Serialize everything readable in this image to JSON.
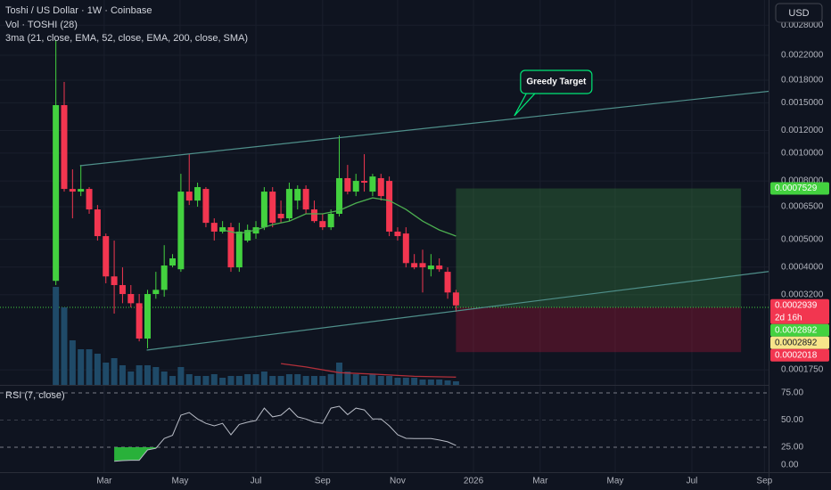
{
  "chart_data": [
    {
      "type": "candlestick",
      "title": "Toshi / US Dollar · 1W · Coinbase",
      "subtitles": [
        "Vol · TOSHI (28)",
        "3ma (21, close, EMA, 52, close, EMA, 200, close, SMA)"
      ],
      "currency": "USD",
      "log_scale": true,
      "grid": true,
      "up_color": "#43d13f",
      "down_color": "#f23650",
      "x": [
        0,
        1,
        2,
        3,
        4,
        5,
        6,
        7,
        8,
        9,
        10,
        11,
        12,
        13,
        14,
        15,
        16,
        17,
        18,
        19,
        20,
        21,
        22,
        23,
        24,
        25,
        26,
        27,
        28,
        29,
        30,
        31,
        32,
        33,
        34,
        35,
        36,
        37,
        38,
        39,
        40,
        41,
        42,
        43,
        44,
        45,
        46,
        47,
        48
      ],
      "ohlc": [
        [
          0.000358,
          0.002486,
          0.000346,
          0.001472
        ],
        [
          0.001472,
          0.001774,
          0.000734,
          0.00075
        ],
        [
          0.00075,
          0.000878,
          0.000592,
          0.000734
        ],
        [
          0.000734,
          0.00091,
          0.000708,
          0.00075
        ],
        [
          0.00075,
          0.000761,
          0.000614,
          0.000636
        ],
        [
          0.000636,
          0.000659,
          0.000495,
          0.000513
        ],
        [
          0.000513,
          0.000524,
          0.000351,
          0.000371
        ],
        [
          0.000371,
          0.000495,
          0.000275,
          0.000346
        ],
        [
          0.000346,
          0.000399,
          0.000299,
          0.000322
        ],
        [
          0.000322,
          0.000346,
          0.000289,
          0.000299
        ],
        [
          0.000299,
          0.000322,
          0.00022,
          0.000225
        ],
        [
          0.000225,
          0.000333,
          0.000208,
          0.000322
        ],
        [
          0.000322,
          0.000385,
          0.00031,
          0.000333
        ],
        [
          0.000333,
          0.000477,
          0.000315,
          0.000405
        ],
        [
          0.000405,
          0.000444,
          0.000399,
          0.000429
        ],
        [
          0.000393,
          0.000847,
          0.000385,
          0.000734
        ],
        [
          0.000734,
          0.000992,
          0.000659,
          0.000683
        ],
        [
          0.000683,
          0.000789,
          0.00065,
          0.000761
        ],
        [
          0.00075,
          0.000761,
          0.000551,
          0.000571
        ],
        [
          0.000571,
          0.000592,
          0.000495,
          0.000532
        ],
        [
          0.000532,
          0.000579,
          0.000524,
          0.000551
        ],
        [
          0.000551,
          0.000571,
          0.000385,
          0.000399
        ],
        [
          0.000399,
          0.000571,
          0.000385,
          0.000532
        ],
        [
          0.000495,
          0.000563,
          0.000488,
          0.000539
        ],
        [
          0.000524,
          0.000579,
          0.000502,
          0.000551
        ],
        [
          0.000551,
          0.000761,
          0.000539,
          0.000734
        ],
        [
          0.000734,
          0.000761,
          0.000551,
          0.000571
        ],
        [
          0.000614,
          0.000683,
          0.000571,
          0.000592
        ],
        [
          0.000592,
          0.000789,
          0.000579,
          0.00075
        ],
        [
          0.000683,
          0.000772,
          0.000636,
          0.00075
        ],
        [
          0.00075,
          0.000772,
          0.000614,
          0.000636
        ],
        [
          0.000636,
          0.000683,
          0.000571,
          0.000579
        ],
        [
          0.000579,
          0.000614,
          0.000539,
          0.000551
        ],
        [
          0.000551,
          0.000636,
          0.000539,
          0.000614
        ],
        [
          0.000614,
          0.001153,
          0.000601,
          0.000818
        ],
        [
          0.000818,
          0.00091,
          0.000718,
          0.000734
        ],
        [
          0.000734,
          0.000847,
          0.000708,
          0.0008
        ],
        [
          0.0008,
          0.000992,
          0.000734,
          0.000789
        ],
        [
          0.000734,
          0.000847,
          0.000708,
          0.000829
        ],
        [
          0.000818,
          0.000847,
          0.000683,
          0.000708
        ],
        [
          0.0008,
          0.000829,
          0.000513,
          0.000532
        ],
        [
          0.000532,
          0.000551,
          0.000495,
          0.000513
        ],
        [
          0.000524,
          0.000551,
          0.000399,
          0.000413
        ],
        [
          0.000413,
          0.000444,
          0.000393,
          0.000399
        ],
        [
          0.000413,
          0.00046,
          0.000326,
          0.000399
        ],
        [
          0.000393,
          0.000444,
          0.000371,
          0.000405
        ],
        [
          0.000405,
          0.000429,
          0.000385,
          0.000393
        ],
        [
          0.000385,
          0.000399,
          0.00031,
          0.000326
        ],
        [
          0.000326,
          0.000333,
          0.000279,
          0.0002939
        ]
      ],
      "volume": [
        110,
        87,
        50,
        40,
        40,
        35,
        25,
        30,
        22,
        15,
        22,
        22,
        20,
        15,
        10,
        20,
        12,
        10,
        10,
        12,
        8,
        10,
        10,
        12,
        12,
        15,
        10,
        10,
        12,
        12,
        10,
        10,
        10,
        12,
        25,
        15,
        12,
        10,
        12,
        10,
        10,
        8,
        8,
        8,
        6,
        6,
        6,
        5,
        4
      ],
      "volume_color": "#1f4a68",
      "moving_averages": [
        {
          "color": "#4caf50",
          "x": [
            20,
            22,
            24,
            26,
            28,
            30,
            32,
            34,
            36,
            38,
            40,
            42,
            44,
            46,
            48
          ],
          "values": [
            0.000539,
            0.000524,
            0.000539,
            0.000563,
            0.000579,
            0.000614,
            0.000614,
            0.000631,
            0.000669,
            0.000698,
            0.000683,
            0.000636,
            0.000579,
            0.000539,
            0.000513
          ]
        },
        {
          "color": "#b2303a",
          "x": [
            27,
            30,
            34,
            38,
            43,
            48
          ],
          "values": [
            0.000184,
            0.000179,
            0.000171,
            0.000169,
            0.000166,
            0.000165
          ]
        }
      ],
      "trendlines": {
        "color": "#4f8f8a",
        "lines": [
          {
            "x": [
              2.9,
              92.9
            ],
            "values": [
              0.000904,
              0.001736
            ]
          },
          {
            "x": [
              10.9,
              92.9
            ],
            "values": [
              0.000205,
              0.000411
            ]
          }
        ]
      },
      "position": {
        "x": [
          48,
          82.2
        ],
        "target": 0.0007529,
        "entry": 0.0002892,
        "stop": 0.0002018,
        "target_color": "rgba(67,160,71,0.28)",
        "stop_color": "rgba(194,24,60,0.30)",
        "entry_color": "#43d13f"
      },
      "price_labels": [
        {
          "value": 0.0007529,
          "color": "#43d13f"
        },
        {
          "value": 0.0002939,
          "color": "#f23650",
          "countdown": "2d 16h"
        },
        {
          "value": 0.0002892,
          "color": "#43d13f"
        },
        {
          "value": 0.0002892,
          "color": "#f7e58a"
        },
        {
          "value": 0.0002018,
          "color": "#f23650"
        }
      ],
      "annotation": {
        "text": "Greedy Target",
        "x": 55.0,
        "value": 0.001351,
        "color": "#00e676"
      },
      "xlim": [
        -6.7,
        85.5
      ],
      "xticks": [
        {
          "value": 5.8,
          "label": "Mar"
        },
        {
          "value": 14.9,
          "label": "May"
        },
        {
          "value": 24.0,
          "label": "Jul"
        },
        {
          "value": 32.0,
          "label": "Sep"
        },
        {
          "value": 41.0,
          "label": "Nov"
        },
        {
          "value": 50.1,
          "label": "2026"
        },
        {
          "value": 58.1,
          "label": "Mar"
        },
        {
          "value": 67.1,
          "label": "May"
        },
        {
          "value": 76.3,
          "label": "Jul"
        },
        {
          "value": 85.0,
          "label": "Sep"
        }
      ],
      "ylim": [
        0.000155,
        0.00343
      ],
      "yticks": [
        {
          "value": 0.0028,
          "label": "0.0028000"
        },
        {
          "value": 0.0022,
          "label": "0.0022000"
        },
        {
          "value": 0.0018,
          "label": "0.0018000"
        },
        {
          "value": 0.0015,
          "label": "0.0015000"
        },
        {
          "value": 0.0012,
          "label": "0.0012000"
        },
        {
          "value": 0.001,
          "label": "0.0010000"
        },
        {
          "value": 0.0008,
          "label": "0.0008000"
        },
        {
          "value": 0.00065,
          "label": "0.0006500"
        },
        {
          "value": 0.0005,
          "label": "0.0005000"
        },
        {
          "value": 0.0004,
          "label": "0.0004000"
        },
        {
          "value": 0.00032,
          "label": "0.0003200"
        },
        {
          "value": 0.000175,
          "label": "0.0001750"
        }
      ]
    },
    {
      "type": "line",
      "title": "RSI (7, close)",
      "color": "#b8bcc6",
      "fill_color": "#2ecc40",
      "fill_below": 25,
      "x": [
        7,
        8,
        9,
        10,
        11,
        12,
        13,
        14,
        15,
        16,
        17,
        18,
        19,
        20,
        21,
        22,
        23,
        24,
        25,
        26,
        27,
        28,
        29,
        30,
        31,
        32,
        33,
        34,
        35,
        36,
        37,
        38,
        39,
        40,
        41,
        42,
        43,
        44,
        45,
        46,
        47,
        48
      ],
      "values": [
        12,
        12.7,
        13,
        13,
        22.5,
        24,
        33,
        36,
        54.5,
        57,
        51,
        47,
        44.7,
        47,
        36.5,
        46,
        48,
        49.6,
        61,
        53,
        54.5,
        61,
        53,
        51,
        48,
        47,
        61,
        62.7,
        55,
        61,
        59.4,
        51,
        51,
        44.7,
        36.5,
        33.2,
        33,
        33,
        33,
        31.6,
        30,
        26.6
      ],
      "ylim": [
        2,
        81.6
      ],
      "yticks": [
        {
          "value": 75,
          "label": "75.00"
        },
        {
          "value": 50,
          "label": "50.00"
        },
        {
          "value": 25,
          "label": "25.00"
        },
        {
          "value": 0,
          "label": "0.00"
        }
      ]
    }
  ]
}
